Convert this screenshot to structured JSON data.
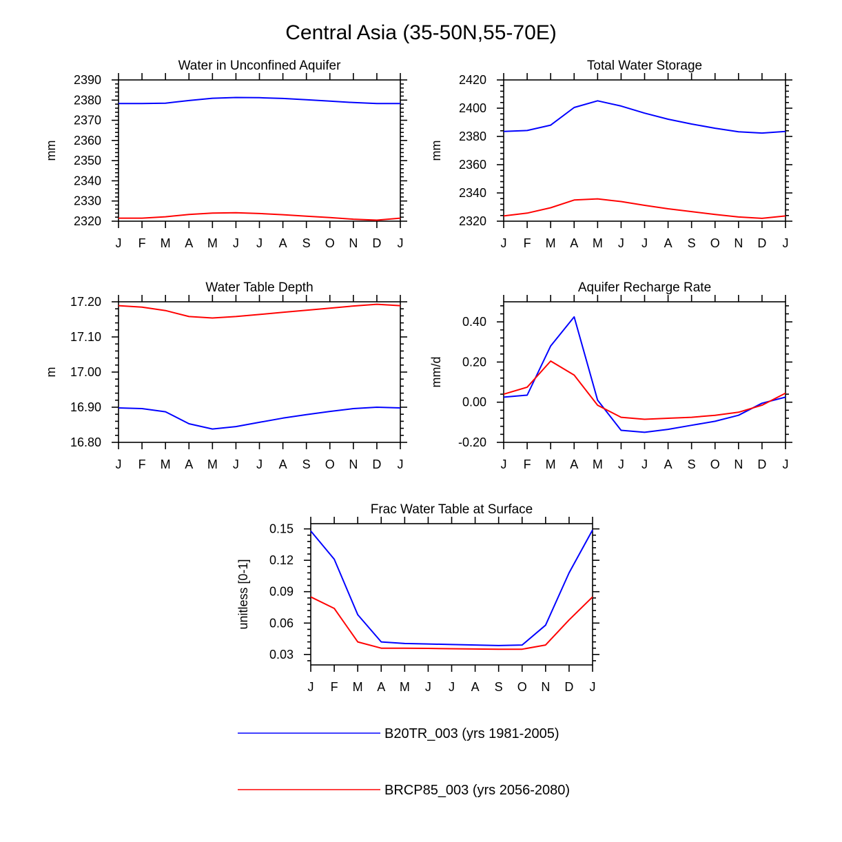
{
  "title": "Central Asia (35-50N,55-70E)",
  "colors": {
    "series_1": "#0000ff",
    "series_2": "#ff0000",
    "axis": "#000000"
  },
  "legend": [
    {
      "label": "B20TR_003 (yrs 1981-2005)",
      "color": "#0000ff"
    },
    {
      "label": "BRCP85_003 (yrs 2056-2080)",
      "color": "#ff0000"
    }
  ],
  "chart_data": [
    {
      "type": "line",
      "title": "Water in Unconfined Aquifer",
      "ylabel": "mm",
      "categories": [
        "J",
        "F",
        "M",
        "A",
        "M",
        "J",
        "J",
        "A",
        "S",
        "O",
        "N",
        "D",
        "J"
      ],
      "ylim": [
        2320,
        2390
      ],
      "yticks": [
        2320,
        2330,
        2340,
        2350,
        2360,
        2370,
        2380,
        2390
      ],
      "ytick_labels": [
        "2320",
        "2330",
        "2340",
        "2350",
        "2360",
        "2370",
        "2380",
        "2390"
      ],
      "minor_step": 2,
      "series": [
        {
          "name": "B20TR_003 (yrs 1981-2005)",
          "color": "#0000ff",
          "values": [
            2378.3,
            2378.3,
            2378.5,
            2379.8,
            2380.9,
            2381.3,
            2381.2,
            2380.8,
            2380.2,
            2379.5,
            2378.8,
            2378.3,
            2378.3
          ]
        },
        {
          "name": "BRCP85_003 (yrs 2056-2080)",
          "color": "#ff0000",
          "values": [
            2321.5,
            2321.5,
            2322.2,
            2323.3,
            2324.0,
            2324.2,
            2323.8,
            2323.2,
            2322.5,
            2321.8,
            2321.0,
            2320.5,
            2321.5
          ]
        }
      ]
    },
    {
      "type": "line",
      "title": "Total Water Storage",
      "ylabel": "mm",
      "categories": [
        "J",
        "F",
        "M",
        "A",
        "M",
        "J",
        "J",
        "A",
        "S",
        "O",
        "N",
        "D",
        "J"
      ],
      "ylim": [
        2320,
        2420
      ],
      "yticks": [
        2320,
        2340,
        2360,
        2380,
        2400,
        2420
      ],
      "ytick_labels": [
        "2320",
        "2340",
        "2360",
        "2380",
        "2400",
        "2420"
      ],
      "minor_step": 4,
      "series": [
        {
          "name": "B20TR_003 (yrs 1981-2005)",
          "color": "#0000ff",
          "values": [
            2383.5,
            2384.2,
            2388.0,
            2400.5,
            2405.2,
            2401.5,
            2396.5,
            2392.2,
            2388.8,
            2385.8,
            2383.3,
            2382.4,
            2383.5
          ]
        },
        {
          "name": "BRCP85_003 (yrs 2056-2080)",
          "color": "#ff0000",
          "values": [
            2323.7,
            2325.7,
            2329.5,
            2335.0,
            2335.8,
            2333.9,
            2331.2,
            2328.8,
            2326.8,
            2324.8,
            2323.0,
            2322.0,
            2323.7
          ]
        }
      ]
    },
    {
      "type": "line",
      "title": "Water Table Depth",
      "ylabel": "m",
      "categories": [
        "J",
        "F",
        "M",
        "A",
        "M",
        "J",
        "J",
        "A",
        "S",
        "O",
        "N",
        "D",
        "J"
      ],
      "ylim": [
        16.8,
        17.2
      ],
      "yticks": [
        16.8,
        16.9,
        17.0,
        17.1,
        17.2
      ],
      "ytick_labels": [
        "16.80",
        "16.90",
        "17.00",
        "17.10",
        "17.20"
      ],
      "minor_step": 0.02,
      "series": [
        {
          "name": "B20TR_003 (yrs 1981-2005)",
          "color": "#0000ff",
          "values": [
            16.898,
            16.896,
            16.887,
            16.853,
            16.838,
            16.845,
            16.857,
            16.869,
            16.879,
            16.888,
            16.896,
            16.9,
            16.898
          ]
        },
        {
          "name": "BRCP85_003 (yrs 2056-2080)",
          "color": "#ff0000",
          "values": [
            17.189,
            17.185,
            17.175,
            17.158,
            17.154,
            17.158,
            17.164,
            17.17,
            17.176,
            17.182,
            17.188,
            17.193,
            17.189
          ]
        }
      ]
    },
    {
      "type": "line",
      "title": "Aquifer Recharge Rate",
      "ylabel": "mm/d",
      "categories": [
        "J",
        "F",
        "M",
        "A",
        "M",
        "J",
        "J",
        "A",
        "S",
        "O",
        "N",
        "D",
        "J"
      ],
      "ylim": [
        -0.2,
        0.5
      ],
      "yticks": [
        -0.2,
        0.0,
        0.2,
        0.4
      ],
      "ytick_labels": [
        "-0.20",
        "0.00",
        "0.20",
        "0.40"
      ],
      "minor_step": 0.04,
      "series": [
        {
          "name": "B20TR_003 (yrs 1981-2005)",
          "color": "#0000ff",
          "values": [
            0.025,
            0.035,
            0.28,
            0.425,
            0.01,
            -0.14,
            -0.15,
            -0.135,
            -0.115,
            -0.095,
            -0.065,
            -0.005,
            0.025
          ]
        },
        {
          "name": "BRCP85_003 (yrs 2056-2080)",
          "color": "#ff0000",
          "values": [
            0.04,
            0.075,
            0.205,
            0.135,
            -0.015,
            -0.075,
            -0.085,
            -0.08,
            -0.075,
            -0.065,
            -0.05,
            -0.015,
            0.045
          ]
        }
      ]
    },
    {
      "type": "line",
      "title": "Frac Water Table at Surface",
      "ylabel": "unitless [0-1]",
      "categories": [
        "J",
        "F",
        "M",
        "A",
        "M",
        "J",
        "J",
        "A",
        "S",
        "O",
        "N",
        "D",
        "J"
      ],
      "ylim": [
        0.02,
        0.155
      ],
      "yticks": [
        0.03,
        0.06,
        0.09,
        0.12,
        0.15
      ],
      "ytick_labels": [
        "0.03",
        "0.06",
        "0.09",
        "0.12",
        "0.15"
      ],
      "minor_step": 0.006,
      "series": [
        {
          "name": "B20TR_003 (yrs 1981-2005)",
          "color": "#0000ff",
          "values": [
            0.148,
            0.121,
            0.068,
            0.042,
            0.0405,
            0.04,
            0.0395,
            0.039,
            0.0385,
            0.039,
            0.058,
            0.108,
            0.149
          ]
        },
        {
          "name": "BRCP85_003 (yrs 2056-2080)",
          "color": "#ff0000",
          "values": [
            0.085,
            0.074,
            0.042,
            0.036,
            0.036,
            0.0358,
            0.0355,
            0.0352,
            0.035,
            0.035,
            0.039,
            0.063,
            0.085
          ]
        }
      ]
    }
  ]
}
